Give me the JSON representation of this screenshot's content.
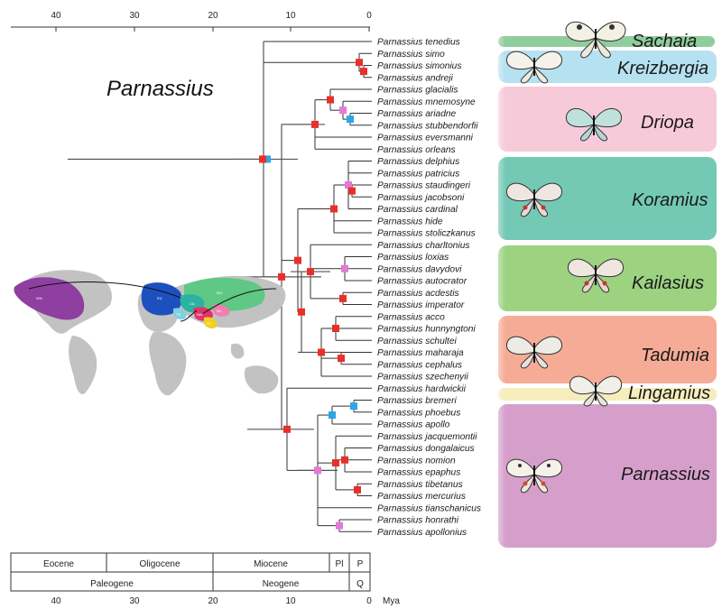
{
  "figure": {
    "genus_label": "Parnassius",
    "axis_unit": "Mya",
    "time_ticks": [
      "40",
      "30",
      "20",
      "10",
      "0"
    ]
  },
  "taxa": [
    "Parnassius tenedius",
    "Parnassius simo",
    "Parnassius simonius",
    "Parnassius andreji",
    "Parnassius glacialis",
    "Parnassius mnemosyne",
    "Parnassius ariadne",
    "Parnassius stubbendorfii",
    "Parnassius eversmanni",
    "Parnassius orleans",
    "Parnassius delphius",
    "Parnassius patricius",
    "Parnassius staudingeri",
    "Parnassius jacobsoni",
    "Parnassius cardinal",
    "Parnassius hide",
    "Parnassius stoliczkanus",
    "Parnassius charltonius",
    "Parnassius loxias",
    "Parnassius davydovi",
    "Parnassius autocrator",
    "Parnassius acdestis",
    "Parnassius imperator",
    "Parnassius acco",
    "Parnassius hunnyngtoni",
    "Parnassius schultei",
    "Parnassius maharaja",
    "Parnassius cephalus",
    "Parnassius szechenyii",
    "Parnassius hardwickii",
    "Parnassius bremeri",
    "Parnassius phoebus",
    "Parnassius apollo",
    "Parnassius jacquemontii",
    "Parnassius dongalaicus",
    "Parnassius nomion",
    "Parnassius epaphus",
    "Parnassius tibetanus",
    "Parnassius mercurius",
    "Parnassius tianschanicus",
    "Parnassius honrathi",
    "Parnassius apollonius"
  ],
  "subgenera": [
    {
      "name": "Sachaia",
      "color": "#7cc48c"
    },
    {
      "name": "Kreizbergia",
      "color": "#a9dcef"
    },
    {
      "name": "Driopa",
      "color": "#f6c1d3"
    },
    {
      "name": "Koramius",
      "color": "#5cc0a8"
    },
    {
      "name": "Kailasius",
      "color": "#8bca6a"
    },
    {
      "name": "Tadumia",
      "color": "#f59c84"
    },
    {
      "name": "Lingamius",
      "color": "#f5eab0"
    },
    {
      "name": "Parnassius",
      "color": "#cf8ec2"
    }
  ],
  "geologic_time": {
    "epochs": [
      "Eocene",
      "Oligocene",
      "Miocene",
      "Pl",
      "P"
    ],
    "periods": [
      "Paleogene",
      "Neogene",
      "Q"
    ]
  },
  "map_regions": [
    "WN",
    "EU",
    "CA",
    "MO",
    "TS",
    "NC",
    "NW",
    "SC"
  ],
  "colors": {
    "node_red": "#e8302b",
    "node_pink": "#e27ad6",
    "node_blue": "#2aa7e6",
    "branch": "#333333",
    "ci_bar": "#555555",
    "world_map": "#bdbdbd"
  }
}
